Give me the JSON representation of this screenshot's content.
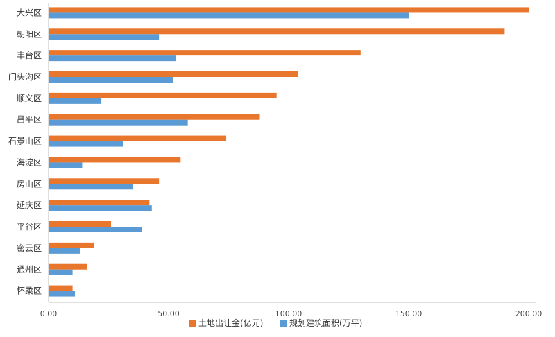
{
  "chart_data": {
    "type": "bar",
    "orientation": "horizontal",
    "categories": [
      "大兴区",
      "朝阳区",
      "丰台区",
      "门头沟区",
      "顺义区",
      "昌平区",
      "石景山区",
      "海淀区",
      "房山区",
      "延庆区",
      "平谷区",
      "密云区",
      "通州区",
      "怀柔区"
    ],
    "series": [
      {
        "name": "土地出让金(亿元)",
        "color": "#E8762D",
        "values": [
          200,
          190,
          130,
          104,
          95,
          88,
          74,
          55,
          46,
          42,
          26,
          19,
          16,
          10
        ]
      },
      {
        "name": "规划建筑面积(万平)",
        "color": "#5B9BD5",
        "values": [
          150,
          46,
          53,
          52,
          22,
          58,
          31,
          14,
          35,
          43,
          39,
          13,
          10,
          11
        ]
      }
    ],
    "xlim": [
      0,
      200
    ],
    "xticks": [
      "0.00",
      "50.00",
      "100.00",
      "150.00",
      "200.00"
    ],
    "xtick_values": [
      0,
      50,
      100,
      150,
      200
    ],
    "grid": false,
    "legend": "bottom"
  }
}
